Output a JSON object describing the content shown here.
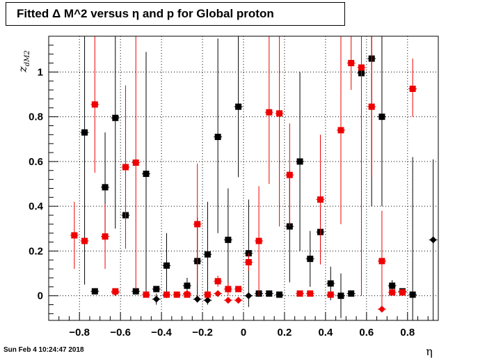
{
  "chart_data": {
    "type": "scatter",
    "title": "Fitted Δ M^2 versus η and p for Global proton",
    "xlabel": "η",
    "ylabel": "z_dM2",
    "ylabel_main": "z",
    "ylabel_sub": "dM2",
    "xlim": [
      -0.95,
      0.95
    ],
    "ylim": [
      -0.11,
      1.16
    ],
    "xticks": [
      -0.8,
      -0.6,
      -0.4,
      -0.2,
      0,
      0.2,
      0.4,
      0.6,
      0.8
    ],
    "xtick_labels": [
      "−0.8",
      "−0.6",
      "−0.4",
      "−0.2",
      "0",
      "0.2",
      "0.4",
      "0.6",
      "0.8"
    ],
    "yticks": [
      0,
      0.2,
      0.4,
      0.6,
      0.8,
      1
    ],
    "ytick_labels": [
      "0",
      "0.2",
      "0.4",
      "0.6",
      "0.8",
      "1"
    ],
    "grid": true,
    "series": [
      {
        "color": "#000000",
        "marker": "square",
        "points": [
          {
            "x": -0.775,
            "y": 0.73,
            "lo": 0.05,
            "hi": 1.16
          },
          {
            "x": -0.725,
            "y": 0.02,
            "lo": 0.02,
            "hi": 0.02
          },
          {
            "x": -0.675,
            "y": 0.485,
            "lo": 0.24,
            "hi": 0.73
          },
          {
            "x": -0.625,
            "y": 0.795,
            "lo": 0.3,
            "hi": 1.16
          },
          {
            "x": -0.575,
            "y": 0.36,
            "lo": 0.36,
            "hi": 0.36
          },
          {
            "x": -0.525,
            "y": 0.02,
            "lo": 0.02,
            "hi": 0.02
          },
          {
            "x": -0.475,
            "y": 0.545,
            "lo": 0.0,
            "hi": 1.09
          },
          {
            "x": -0.425,
            "y": 0.03,
            "lo": 0.03,
            "hi": 0.03
          },
          {
            "x": -0.375,
            "y": 0.135,
            "lo": -0.01,
            "hi": 0.28
          },
          {
            "x": -0.275,
            "y": 0.045,
            "lo": 0.02,
            "hi": 0.08
          },
          {
            "x": -0.225,
            "y": 0.155,
            "lo": -0.03,
            "hi": 0.35
          },
          {
            "x": -0.175,
            "y": 0.185,
            "lo": -0.04,
            "hi": 0.42
          },
          {
            "x": -0.125,
            "y": 0.71,
            "lo": 0.28,
            "hi": 1.15
          },
          {
            "x": -0.075,
            "y": 0.25,
            "lo": 0.02,
            "hi": 0.48
          },
          {
            "x": -0.025,
            "y": 0.845,
            "lo": 0.53,
            "hi": 1.16
          },
          {
            "x": 0.025,
            "y": 0.19,
            "lo": -0.05,
            "hi": 0.43
          },
          {
            "x": 0.075,
            "y": 0.01,
            "lo": 0.01,
            "hi": 0.01
          },
          {
            "x": 0.125,
            "y": 0.01,
            "lo": 0.01,
            "hi": 0.01
          },
          {
            "x": 0.175,
            "y": 0.005,
            "lo": 0.005,
            "hi": 0.005
          },
          {
            "x": 0.225,
            "y": 0.31,
            "lo": 0.06,
            "hi": 0.56
          },
          {
            "x": 0.275,
            "y": 0.6,
            "lo": 0.2,
            "hi": 1.0
          },
          {
            "x": 0.325,
            "y": 0.165,
            "lo": 0.04,
            "hi": 0.29
          },
          {
            "x": 0.375,
            "y": 0.285,
            "lo": 0.17,
            "hi": 0.4
          },
          {
            "x": 0.425,
            "y": 0.055,
            "lo": -0.02,
            "hi": 0.13
          },
          {
            "x": 0.475,
            "y": 0.0,
            "lo": -0.1,
            "hi": 0.1
          },
          {
            "x": 0.525,
            "y": 0.01,
            "lo": 0.01,
            "hi": 0.01
          },
          {
            "x": 0.575,
            "y": 0.995,
            "lo": 0.99,
            "hi": 1.0
          },
          {
            "x": 0.625,
            "y": 1.06,
            "lo": 0.4,
            "hi": 1.16
          },
          {
            "x": 0.675,
            "y": 0.8,
            "lo": 0.4,
            "hi": 1.16
          },
          {
            "x": 0.725,
            "y": 0.045,
            "lo": 0.01,
            "hi": 0.07
          },
          {
            "x": 0.775,
            "y": 0.02,
            "lo": 0.02,
            "hi": 0.02
          },
          {
            "x": 0.825,
            "y": 0.005,
            "lo": -0.11,
            "hi": 0.62
          }
        ]
      },
      {
        "color": "#000000",
        "marker": "diamond",
        "points": [
          {
            "x": -0.425,
            "y": -0.015,
            "lo": -0.04,
            "hi": 0.01
          },
          {
            "x": -0.225,
            "y": -0.015,
            "lo": -0.015,
            "hi": -0.015
          },
          {
            "x": -0.175,
            "y": -0.02,
            "lo": -0.02,
            "hi": -0.02
          },
          {
            "x": 0.025,
            "y": 0.0,
            "lo": 0.0,
            "hi": 0.0
          },
          {
            "x": 0.925,
            "y": 0.25,
            "lo": -0.11,
            "hi": 0.61
          }
        ]
      },
      {
        "color": "#ee0000",
        "marker": "square",
        "points": [
          {
            "x": -0.825,
            "y": 0.27,
            "lo": 0.12,
            "hi": 0.42
          },
          {
            "x": -0.775,
            "y": 0.245,
            "lo": 0.245,
            "hi": 0.245
          },
          {
            "x": -0.725,
            "y": 0.855,
            "lo": 0.55,
            "hi": 1.16
          },
          {
            "x": -0.675,
            "y": 0.265,
            "lo": 0.12,
            "hi": 0.41
          },
          {
            "x": -0.625,
            "y": 0.02,
            "lo": 0.02,
            "hi": 0.02
          },
          {
            "x": -0.575,
            "y": 0.575,
            "lo": 0.21,
            "hi": 0.94
          },
          {
            "x": -0.525,
            "y": 0.595,
            "lo": 0.03,
            "hi": 1.16
          },
          {
            "x": -0.475,
            "y": 0.005,
            "lo": 0.005,
            "hi": 0.005
          },
          {
            "x": -0.375,
            "y": 0.005,
            "lo": 0.005,
            "hi": 0.005
          },
          {
            "x": -0.325,
            "y": 0.005,
            "lo": 0.005,
            "hi": 0.005
          },
          {
            "x": -0.275,
            "y": 0.005,
            "lo": 0.005,
            "hi": 0.005
          },
          {
            "x": -0.225,
            "y": 0.32,
            "lo": 0.05,
            "hi": 0.59
          },
          {
            "x": -0.175,
            "y": 0.005,
            "lo": 0.005,
            "hi": 0.005
          },
          {
            "x": -0.125,
            "y": 0.065,
            "lo": 0.04,
            "hi": 0.09
          },
          {
            "x": -0.075,
            "y": 0.03,
            "lo": 0.0,
            "hi": 0.06
          },
          {
            "x": -0.025,
            "y": 0.03,
            "lo": 0.03,
            "hi": 0.03
          },
          {
            "x": 0.025,
            "y": 0.15,
            "lo": 0.11,
            "hi": 0.19
          },
          {
            "x": 0.075,
            "y": 0.245,
            "lo": 0.0,
            "hi": 0.49
          },
          {
            "x": 0.125,
            "y": 0.82,
            "lo": 0.5,
            "hi": 1.16
          },
          {
            "x": 0.175,
            "y": 0.815,
            "lo": 0.31,
            "hi": 1.16
          },
          {
            "x": 0.225,
            "y": 0.54,
            "lo": 0.31,
            "hi": 0.77
          },
          {
            "x": 0.275,
            "y": 0.01,
            "lo": 0.01,
            "hi": 0.01
          },
          {
            "x": 0.325,
            "y": 0.01,
            "lo": 0.01,
            "hi": 0.01
          },
          {
            "x": 0.375,
            "y": 0.43,
            "lo": 0.14,
            "hi": 0.72
          },
          {
            "x": 0.425,
            "y": 0.005,
            "lo": 0.005,
            "hi": 0.005
          },
          {
            "x": 0.475,
            "y": 0.74,
            "lo": 0.32,
            "hi": 1.16
          },
          {
            "x": 0.525,
            "y": 1.04,
            "lo": 0.92,
            "hi": 1.16
          },
          {
            "x": 0.575,
            "y": 1.02,
            "lo": 0.0,
            "hi": 1.16
          },
          {
            "x": 0.625,
            "y": 0.845,
            "lo": 0.53,
            "hi": 1.16
          },
          {
            "x": 0.675,
            "y": 0.155,
            "lo": -0.07,
            "hi": 0.38
          },
          {
            "x": 0.725,
            "y": 0.015,
            "lo": 0.015,
            "hi": 0.015
          },
          {
            "x": 0.775,
            "y": 0.015,
            "lo": 0.015,
            "hi": 0.015
          },
          {
            "x": 0.825,
            "y": 0.925,
            "lo": 0.8,
            "hi": 1.06
          }
        ]
      },
      {
        "color": "#ee0000",
        "marker": "diamond",
        "points": [
          {
            "x": -0.625,
            "y": 0.015,
            "lo": 0.015,
            "hi": 0.015
          },
          {
            "x": -0.275,
            "y": 0.01,
            "lo": 0.01,
            "hi": 0.01
          },
          {
            "x": -0.125,
            "y": 0.01,
            "lo": 0.01,
            "hi": 0.01
          },
          {
            "x": -0.075,
            "y": -0.02,
            "lo": -0.02,
            "hi": -0.02
          },
          {
            "x": -0.025,
            "y": -0.02,
            "lo": -0.02,
            "hi": -0.02
          },
          {
            "x": 0.675,
            "y": -0.06,
            "lo": -0.06,
            "hi": -0.06
          }
        ]
      }
    ]
  },
  "footer": {
    "timestamp": "Sun Feb  4 10:24:47 2018"
  }
}
